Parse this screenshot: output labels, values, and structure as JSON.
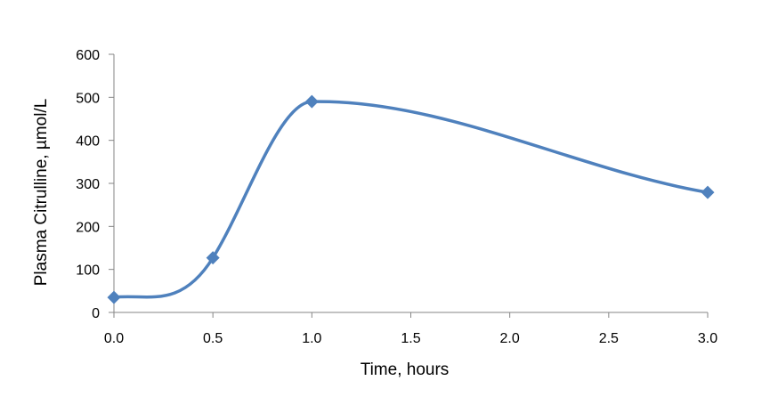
{
  "chart_data": {
    "type": "scatter",
    "title": "",
    "xlabel": "Time, hours",
    "ylabel": "Plasma Citrulline, µmol/L",
    "xlim": [
      0,
      3
    ],
    "ylim": [
      0,
      600
    ],
    "x_ticks": [
      "0.0",
      "0.5",
      "1.0",
      "1.5",
      "2.0",
      "2.5",
      "3.0"
    ],
    "y_ticks": [
      "0",
      "100",
      "200",
      "300",
      "400",
      "500",
      "600"
    ],
    "grid": false,
    "legend": "none",
    "smoothed_line": true,
    "marker": "diamond",
    "series": [
      {
        "color": "#4F81BD",
        "x": [
          0.0,
          0.5,
          1.0,
          3.0
        ],
        "y": [
          35,
          127,
          490,
          279
        ]
      }
    ]
  }
}
